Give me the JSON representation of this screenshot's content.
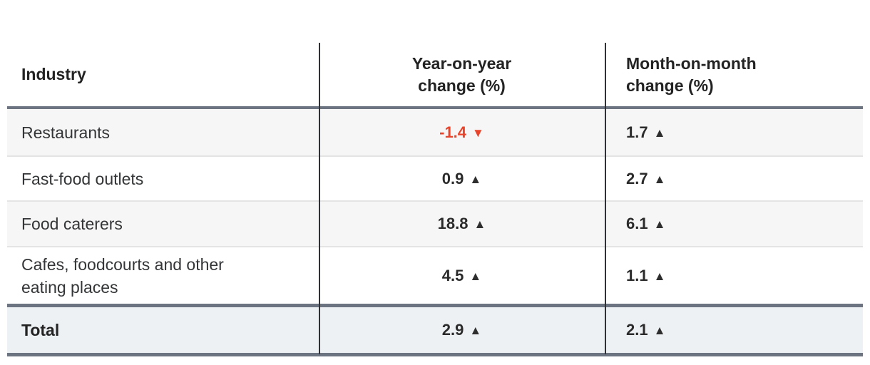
{
  "colors": {
    "negative_value": "#e8442b",
    "positive_value": "#2b2b2b",
    "rule": "#6b7480",
    "alt_row_bg": "#f6f6f6",
    "total_row_bg": "#edf1f3"
  },
  "table": {
    "header": {
      "industry": "Industry",
      "yoy_line1": "Year-on-year",
      "yoy_line2": "change (%)",
      "mom_line1": "Month-on-month",
      "mom_line2": "change (%)"
    },
    "rows": [
      {
        "industry": "Restaurants",
        "yoy": {
          "value": "-1.4",
          "arrow": "▼",
          "direction": "down"
        },
        "mom": {
          "value": "1.7",
          "arrow": "▲",
          "direction": "up"
        }
      },
      {
        "industry": "Fast-food outlets",
        "yoy": {
          "value": "0.9",
          "arrow": "▲",
          "direction": "up"
        },
        "mom": {
          "value": "2.7",
          "arrow": "▲",
          "direction": "up"
        }
      },
      {
        "industry": "Food caterers",
        "yoy": {
          "value": "18.8",
          "arrow": "▲",
          "direction": "up"
        },
        "mom": {
          "value": "6.1",
          "arrow": "▲",
          "direction": "up"
        }
      },
      {
        "industry": "Cafes, foodcourts and other eating places",
        "yoy": {
          "value": "4.5",
          "arrow": "▲",
          "direction": "up"
        },
        "mom": {
          "value": "1.1",
          "arrow": "▲",
          "direction": "up"
        }
      }
    ],
    "total": {
      "label": "Total",
      "yoy": {
        "value": "2.9",
        "arrow": "▲",
        "direction": "up"
      },
      "mom": {
        "value": "2.1",
        "arrow": "▲",
        "direction": "up"
      }
    }
  },
  "chart_data": {
    "type": "table",
    "columns": [
      "Industry",
      "Year-on-year change (%)",
      "Month-on-month change (%)"
    ],
    "rows": [
      [
        "Restaurants",
        -1.4,
        1.7
      ],
      [
        "Fast-food outlets",
        0.9,
        2.7
      ],
      [
        "Food caterers",
        18.8,
        6.1
      ],
      [
        "Cafes, foodcourts and other eating places",
        4.5,
        1.1
      ],
      [
        "Total",
        2.9,
        2.1
      ]
    ]
  }
}
